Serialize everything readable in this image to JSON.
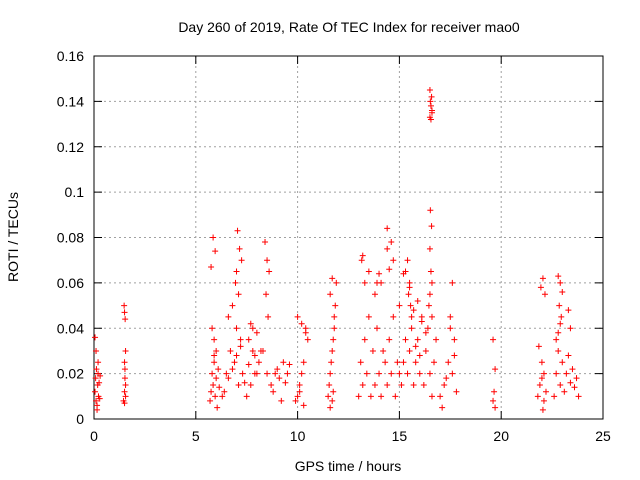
{
  "chart_data": {
    "type": "scatter",
    "title": "Day 260 of 2019, Rate Of TEC Index for receiver mao0",
    "xlabel": "GPS time / hours",
    "ylabel": "ROTI / TECUs",
    "xlim": [
      0,
      25
    ],
    "ylim": [
      0,
      0.16
    ],
    "xticks": [
      0,
      5,
      10,
      15,
      20,
      25
    ],
    "xtick_labels": [
      "0",
      "5",
      "10",
      "15",
      "20",
      "25"
    ],
    "yticks": [
      0,
      0.02,
      0.04,
      0.06,
      0.08,
      0.1,
      0.12,
      0.14,
      0.16
    ],
    "ytick_labels": [
      "0",
      "0.02",
      "0.04",
      "0.06",
      "0.08",
      "0.1",
      "0.12",
      "0.14",
      "0.16"
    ],
    "grid": true,
    "marker": "+",
    "color": "#ff0000",
    "series": [
      {
        "name": "ROTI",
        "x": [
          0.05,
          0.08,
          0.1,
          0.12,
          0.15,
          0.18,
          0.2,
          0.22,
          0.25,
          0.28,
          0.3,
          0.05,
          0.1,
          0.15,
          0.2,
          1.45,
          1.5,
          1.52,
          1.55,
          1.48,
          1.5,
          1.53,
          1.55,
          1.5,
          1.52,
          1.5,
          1.55,
          5.7,
          5.75,
          5.8,
          5.85,
          5.9,
          5.95,
          6.0,
          6.05,
          6.1,
          6.15,
          5.8,
          5.9,
          6.0,
          5.85,
          5.95,
          5.75,
          5.9,
          6.3,
          6.5,
          6.7,
          6.9,
          7.0,
          7.1,
          7.2,
          7.3,
          6.6,
          6.8,
          7.05,
          7.15,
          7.25,
          6.95,
          7.0,
          7.1,
          6.4,
          6.6,
          6.8,
          7.0,
          7.2,
          7.4,
          7.6,
          7.8,
          8.0,
          7.5,
          7.7,
          7.9,
          8.1,
          8.3,
          8.5,
          8.7,
          8.9,
          9.1,
          9.3,
          9.5,
          8.4,
          8.5,
          8.6,
          8.45,
          8.55,
          7.6,
          7.8,
          8.2,
          8.0,
          7.7,
          7.9,
          8.8,
          9.0,
          9.2,
          9.4,
          9.6,
          10.0,
          10.1,
          10.2,
          10.3,
          10.4,
          10.5,
          10.0,
          10.2,
          10.4,
          9.9,
          10.1,
          10.3,
          11.5,
          11.6,
          11.7,
          11.8,
          11.9,
          11.55,
          11.65,
          11.75,
          11.85,
          11.6,
          11.7,
          11.8,
          11.7,
          11.6,
          11.75,
          13.0,
          13.1,
          13.2,
          13.3,
          13.4,
          13.5,
          13.6,
          13.7,
          13.8,
          13.9,
          14.0,
          14.1,
          14.2,
          14.3,
          14.4,
          14.5,
          14.6,
          14.7,
          14.8,
          14.9,
          15.0,
          13.2,
          13.5,
          13.8,
          14.1,
          14.4,
          14.7,
          15.0,
          13.15,
          13.3,
          13.9,
          14.0,
          14.5,
          14.4,
          14.6,
          15.1,
          15.2,
          15.3,
          15.4,
          15.5,
          15.6,
          15.7,
          15.8,
          15.9,
          16.0,
          16.1,
          16.2,
          16.3,
          16.4,
          16.5,
          16.6,
          16.7,
          16.8,
          15.2,
          15.4,
          15.5,
          15.45,
          15.55,
          15.6,
          15.3,
          15.5,
          15.7,
          15.9,
          16.1,
          16.3,
          15.8,
          16.0,
          16.5,
          16.52,
          16.55,
          16.58,
          16.6,
          16.5,
          16.55,
          16.6,
          16.52,
          16.58,
          16.5,
          16.55,
          16.6,
          16.5,
          16.45,
          16.6,
          17.0,
          17.2,
          17.4,
          17.6,
          17.8,
          17.1,
          17.3,
          17.5,
          17.7,
          17.5,
          17.6,
          17.7,
          19.6,
          19.7,
          19.65,
          19.7,
          19.6,
          21.8,
          21.9,
          22.0,
          22.1,
          22.2,
          21.85,
          21.95,
          22.05,
          22.15,
          22.0,
          22.1,
          22.05,
          22.6,
          22.7,
          22.8,
          22.9,
          23.0,
          23.1,
          23.2,
          23.3,
          23.4,
          23.5,
          23.6,
          23.7,
          22.8,
          22.9,
          23.0,
          22.85,
          22.95,
          23.3,
          23.4,
          22.7,
          22.8,
          22.9,
          23.8
        ],
        "y": [
          0.012,
          0.018,
          0.008,
          0.022,
          0.006,
          0.015,
          0.02,
          0.01,
          0.016,
          0.009,
          0.019,
          0.036,
          0.03,
          0.004,
          0.025,
          0.008,
          0.012,
          0.018,
          0.015,
          0.05,
          0.047,
          0.044,
          0.03,
          0.025,
          0.022,
          0.007,
          0.01,
          0.008,
          0.012,
          0.02,
          0.015,
          0.025,
          0.01,
          0.018,
          0.005,
          0.022,
          0.014,
          0.04,
          0.035,
          0.03,
          0.08,
          0.074,
          0.067,
          0.028,
          0.01,
          0.02,
          0.03,
          0.025,
          0.04,
          0.015,
          0.035,
          0.02,
          0.045,
          0.05,
          0.083,
          0.075,
          0.07,
          0.06,
          0.065,
          0.055,
          0.012,
          0.018,
          0.022,
          0.028,
          0.032,
          0.016,
          0.024,
          0.03,
          0.02,
          0.01,
          0.015,
          0.02,
          0.025,
          0.03,
          0.02,
          0.015,
          0.02,
          0.018,
          0.025,
          0.02,
          0.078,
          0.07,
          0.065,
          0.055,
          0.045,
          0.035,
          0.04,
          0.03,
          0.038,
          0.042,
          0.028,
          0.012,
          0.022,
          0.008,
          0.016,
          0.024,
          0.01,
          0.015,
          0.02,
          0.025,
          0.04,
          0.035,
          0.045,
          0.042,
          0.038,
          0.008,
          0.012,
          0.006,
          0.01,
          0.02,
          0.03,
          0.045,
          0.06,
          0.015,
          0.025,
          0.035,
          0.05,
          0.055,
          0.062,
          0.04,
          0.008,
          0.005,
          0.012,
          0.01,
          0.025,
          0.015,
          0.035,
          0.02,
          0.045,
          0.01,
          0.03,
          0.015,
          0.04,
          0.02,
          0.01,
          0.03,
          0.025,
          0.015,
          0.035,
          0.02,
          0.045,
          0.01,
          0.025,
          0.02,
          0.072,
          0.065,
          0.055,
          0.06,
          0.075,
          0.07,
          0.05,
          0.07,
          0.06,
          0.06,
          0.064,
          0.066,
          0.084,
          0.078,
          0.015,
          0.025,
          0.035,
          0.02,
          0.03,
          0.04,
          0.015,
          0.025,
          0.035,
          0.02,
          0.045,
          0.015,
          0.03,
          0.04,
          0.02,
          0.01,
          0.025,
          0.035,
          0.064,
          0.07,
          0.06,
          0.055,
          0.05,
          0.045,
          0.065,
          0.058,
          0.048,
          0.052,
          0.043,
          0.038,
          0.032,
          0.028,
          0.145,
          0.14,
          0.138,
          0.142,
          0.136,
          0.133,
          0.132,
          0.135,
          0.092,
          0.085,
          0.075,
          0.065,
          0.06,
          0.055,
          0.05,
          0.045,
          0.01,
          0.015,
          0.025,
          0.02,
          0.012,
          0.005,
          0.018,
          0.045,
          0.035,
          0.04,
          0.06,
          0.028,
          0.035,
          0.022,
          0.012,
          0.005,
          0.008,
          0.01,
          0.015,
          0.025,
          0.02,
          0.012,
          0.032,
          0.058,
          0.062,
          0.055,
          0.018,
          0.008,
          0.004,
          0.01,
          0.02,
          0.03,
          0.015,
          0.025,
          0.012,
          0.02,
          0.028,
          0.016,
          0.022,
          0.014,
          0.018,
          0.063,
          0.06,
          0.056,
          0.05,
          0.045,
          0.048,
          0.04,
          0.035,
          0.038,
          0.042,
          0.01
        ]
      }
    ]
  }
}
